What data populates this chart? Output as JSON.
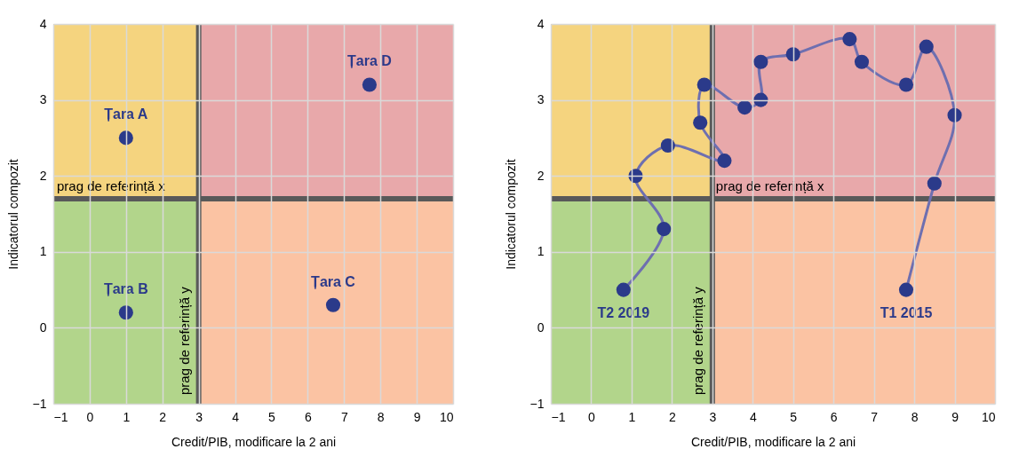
{
  "chart_data": [
    {
      "type": "scatter",
      "xlabel": "Credit/PIB, modificare la 2 ani",
      "ylabel": "Indicatorul compozit",
      "xlim": [
        -1,
        10
      ],
      "xticks": [
        -1,
        0,
        1,
        2,
        3,
        4,
        5,
        6,
        7,
        8,
        9,
        10
      ],
      "ylim": [
        -1,
        4
      ],
      "yticks": [
        -1,
        0,
        1,
        2,
        3,
        4
      ],
      "grid": true,
      "marker": "circle",
      "series": [
        {
          "color": "#2b3a8a",
          "x": [
            1,
            1,
            6.7,
            7.7
          ],
          "values": [
            2.5,
            0.2,
            0.3,
            3.2
          ]
        }
      ],
      "ref_lines": [
        {
          "axis": "y",
          "value": 1.7,
          "color": "#595959"
        },
        {
          "axis": "x",
          "value": 3,
          "color": "#595959"
        }
      ],
      "annotations": [
        {
          "text": "prag de referință x",
          "x": -1,
          "y": 1.7
        },
        {
          "text": "prag de referință y",
          "x": 3,
          "y": -1
        },
        {
          "text": "Țara A",
          "x": 1,
          "y": 2.5
        },
        {
          "text": "Țara B",
          "x": 1,
          "y": 0.2
        },
        {
          "text": "Țara C",
          "x": 6.7,
          "y": 0.3
        },
        {
          "text": "Țara D",
          "x": 7.7,
          "y": 3.2
        }
      ]
    },
    {
      "type": "line",
      "xlabel": "Credit/PIB, modificare la 2 ani",
      "ylabel": "Indicatorul compozit",
      "xlim": [
        -1,
        10
      ],
      "xticks": [
        -1,
        0,
        1,
        2,
        3,
        4,
        5,
        6,
        7,
        8,
        9,
        10
      ],
      "ylim": [
        -1,
        4
      ],
      "yticks": [
        -1,
        0,
        1,
        2,
        3,
        4
      ],
      "grid": true,
      "marker": "circle",
      "series": [
        {
          "color": "#6e6fb0",
          "x": [
            7.8,
            8.5,
            9.0,
            8.3,
            7.8,
            6.7,
            6.4,
            5.0,
            4.2,
            4.2,
            3.8,
            2.8,
            2.7,
            3.3,
            1.9,
            1.1,
            1.8,
            0.8
          ],
          "values": [
            0.5,
            1.9,
            2.8,
            3.7,
            3.2,
            3.5,
            3.8,
            3.6,
            3.5,
            3.0,
            2.9,
            3.2,
            2.7,
            2.2,
            2.4,
            2.0,
            1.3,
            0.5
          ]
        }
      ],
      "ref_lines": [
        {
          "axis": "y",
          "value": 1.7,
          "color": "#595959"
        },
        {
          "axis": "x",
          "value": 3,
          "color": "#595959"
        }
      ],
      "annotations": [
        {
          "text": "prag de referință x",
          "x": 3,
          "y": 1.7
        },
        {
          "text": "prag de referință y",
          "x": 3,
          "y": -1
        },
        {
          "text": "T1 2015",
          "x": 7.8,
          "y": 0.5
        },
        {
          "text": "T2 2019",
          "x": 0.8,
          "y": 0.5
        }
      ]
    }
  ]
}
